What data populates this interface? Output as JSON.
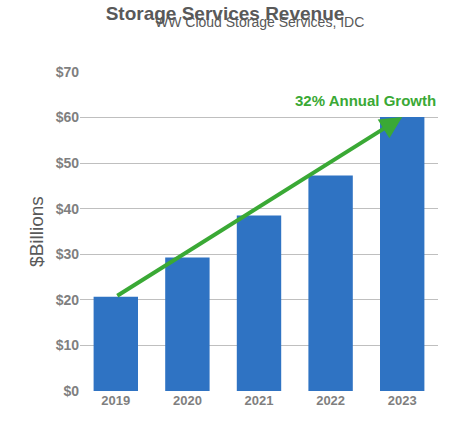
{
  "chart_data": {
    "type": "bar",
    "title": "Storage Services Revenue",
    "subtitle": "WW Cloud Storage Services, IDC",
    "y_label": "$Billions",
    "categories": [
      "2019",
      "2020",
      "2021",
      "2022",
      "2023"
    ],
    "values": [
      20.7,
      29.3,
      38.5,
      47.3,
      60.1
    ],
    "color": "#2f73c3",
    "ylim": [
      0,
      70
    ],
    "yticks": [
      {
        "value": 0,
        "label": "$0"
      },
      {
        "value": 10,
        "label": "$10"
      },
      {
        "value": 20,
        "label": "$20"
      },
      {
        "value": 30,
        "label": "$30"
      },
      {
        "value": 40,
        "label": "$40"
      },
      {
        "value": 50,
        "label": "$50"
      },
      {
        "value": 60,
        "label": "$60"
      },
      {
        "value": 70,
        "label": "$70"
      }
    ],
    "grid": true,
    "annotation": {
      "text": "32% Annual Growth",
      "color": "#3aa935"
    }
  }
}
